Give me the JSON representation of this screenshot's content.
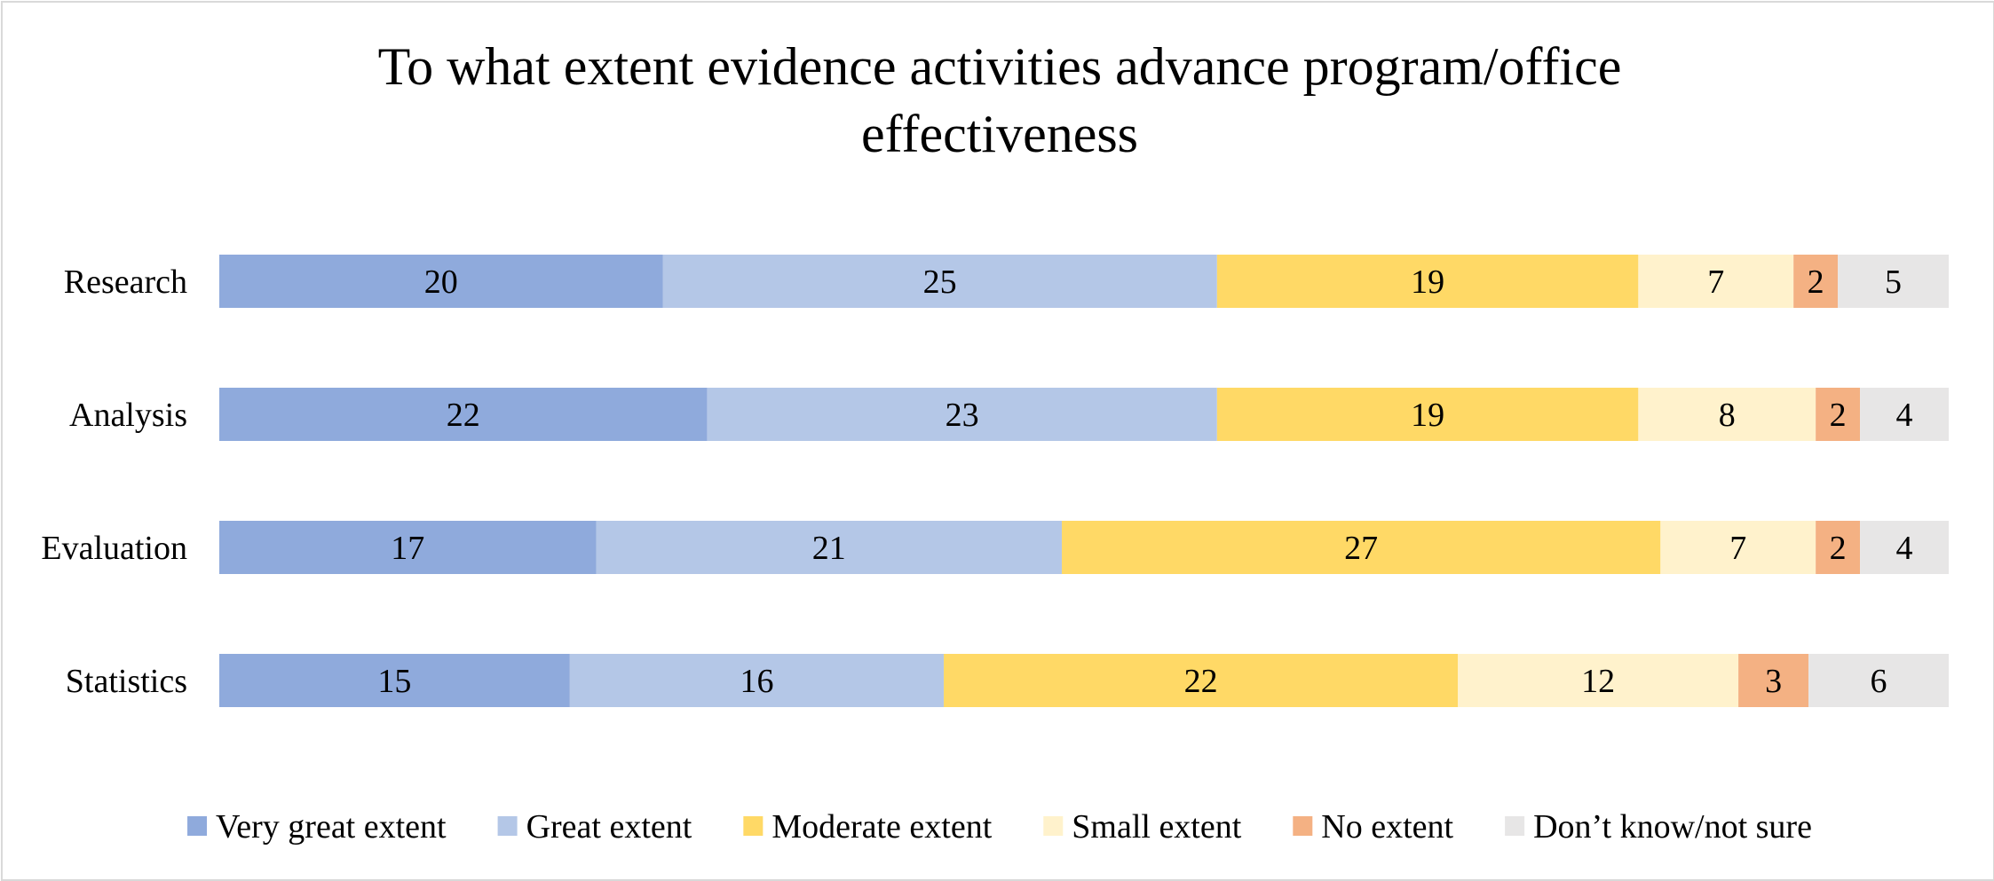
{
  "chart_data": {
    "type": "bar",
    "orientation": "horizontal",
    "stacked": true,
    "title_lines": [
      "To what extent evidence activities advance program/office",
      "effectiveness"
    ],
    "categories": [
      "Research",
      "Analysis",
      "Evaluation",
      "Statistics"
    ],
    "series": [
      {
        "name": "Very great extent",
        "color": "#8faadc",
        "values": [
          20,
          22,
          17,
          15
        ]
      },
      {
        "name": "Great extent",
        "color": "#b4c7e7",
        "values": [
          25,
          23,
          21,
          16
        ]
      },
      {
        "name": "Moderate extent",
        "color": "#ffd966",
        "values": [
          19,
          19,
          27,
          22
        ]
      },
      {
        "name": "Small extent",
        "color": "#fff2cc",
        "values": [
          7,
          8,
          7,
          12
        ]
      },
      {
        "name": "No extent",
        "color": "#f4b183",
        "values": [
          2,
          2,
          2,
          3
        ]
      },
      {
        "name": "Don’t know/not sure",
        "color": "#e7e6e6",
        "values": [
          5,
          4,
          4,
          6
        ]
      }
    ],
    "axis_visible": false,
    "grid": false,
    "legend_position": "bottom"
  }
}
